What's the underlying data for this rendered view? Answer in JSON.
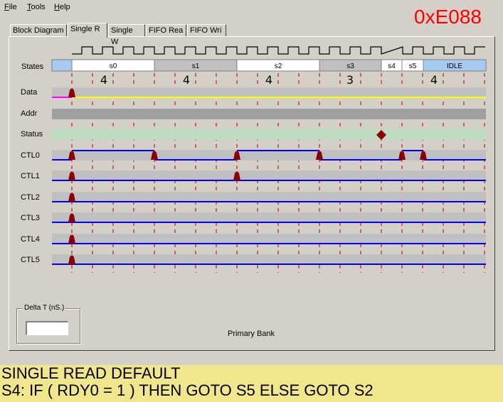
{
  "menu": [
    {
      "key": "F",
      "rest": "ile"
    },
    {
      "key": "T",
      "rest": "ools"
    },
    {
      "key": "H",
      "rest": "elp"
    }
  ],
  "hex_code": "0xE088",
  "tabs": [
    {
      "label": "Block Diagram",
      "active": false
    },
    {
      "label": "Single R",
      "active": true
    },
    {
      "label": "Single W",
      "active": false
    },
    {
      "label": "FIFO Rea",
      "active": false
    },
    {
      "label": "FIFO Wri",
      "active": false
    }
  ],
  "states_label": "States",
  "states": [
    {
      "name": "",
      "color": "#a6caf0"
    },
    {
      "name": "s0",
      "color": "#ffffff",
      "count": "4"
    },
    {
      "name": "s1",
      "color": "#c0c0c0",
      "count": "4"
    },
    {
      "name": "s2",
      "color": "#ffffff",
      "count": "4"
    },
    {
      "name": "s3",
      "color": "#c0c0c0",
      "count": "3"
    },
    {
      "name": "s4",
      "color": "#ffffff",
      "count": ""
    },
    {
      "name": "s5",
      "color": "#ffffff",
      "count": "4"
    },
    {
      "name": "IDLE",
      "color": "#a6caf0"
    }
  ],
  "signals": [
    {
      "name": "Data",
      "bar_color": "#c0c0c0",
      "line_color": "#ffff00"
    },
    {
      "name": "Addr",
      "bar_color": "#a0a0a0",
      "line_color": ""
    },
    {
      "name": "Status",
      "bar_color": "#c0dcc0",
      "line_color": ""
    },
    {
      "name": "CTL0",
      "bar_color": "#c0c0c0",
      "line_color": "#0000ff"
    },
    {
      "name": "CTL1",
      "bar_color": "#c0c0c0",
      "line_color": "#0000ff"
    },
    {
      "name": "CTL2",
      "bar_color": "#c0c0c0",
      "line_color": "#0000ff"
    },
    {
      "name": "CTL3",
      "bar_color": "#c0c0c0",
      "line_color": "#0000ff"
    },
    {
      "name": "CTL4",
      "bar_color": "#c0c0c0",
      "line_color": "#0000ff"
    },
    {
      "name": "CTL5",
      "bar_color": "#c0c0c0",
      "line_color": "#0000ff"
    }
  ],
  "delta_t_label": "Delta T (nS.)",
  "delta_t_value": "",
  "bank_label": "Primary Bank",
  "footer": {
    "line1": "SINGLE READ DEFAULT",
    "line2": "S4: IF ( RDY0 = 1 ) THEN GOTO S5 ELSE GOTO S2"
  },
  "colors": {
    "marker": "#8b0000",
    "grid": "#a00000",
    "clock": "#000000"
  }
}
